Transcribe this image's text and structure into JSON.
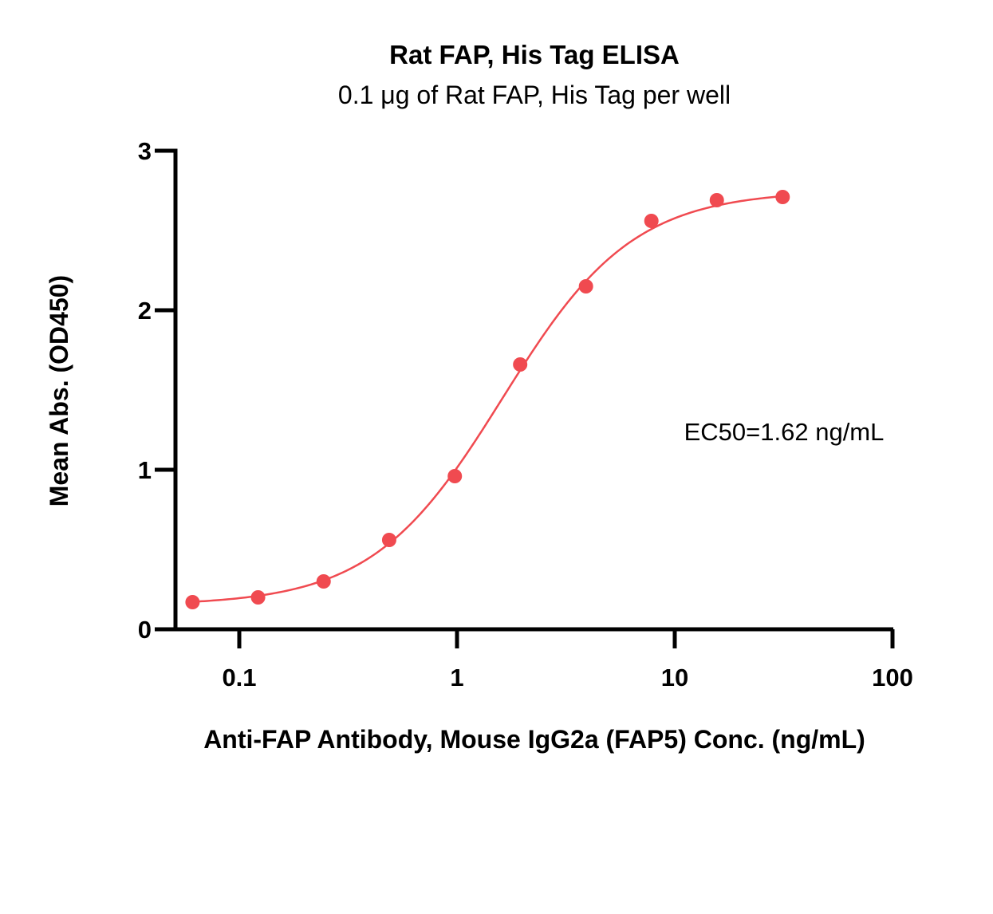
{
  "chart_data": {
    "type": "scatter",
    "title": "Rat FAP, His Tag ELISA",
    "subtitle": "0.1 μg of Rat FAP, His Tag per well",
    "xlabel": "Anti-FAP Antibody, Mouse IgG2a (FAP5) Conc. (ng/mL)",
    "ylabel": "Mean Abs. (OD450)",
    "x_scale": "log",
    "xlim": [
      0.05,
      100
    ],
    "ylim": [
      0,
      3
    ],
    "x_ticks": [
      {
        "value": 0.1,
        "label": "0.1"
      },
      {
        "value": 1,
        "label": "1"
      },
      {
        "value": 10,
        "label": "10"
      },
      {
        "value": 100,
        "label": "100"
      }
    ],
    "y_ticks": [
      {
        "value": 0,
        "label": "0"
      },
      {
        "value": 1,
        "label": "1"
      },
      {
        "value": 2,
        "label": "2"
      },
      {
        "value": 3,
        "label": "3"
      }
    ],
    "grid": false,
    "series": [
      {
        "color": "#f04a50",
        "points": [
          {
            "x": 0.061,
            "y": 0.17
          },
          {
            "x": 0.122,
            "y": 0.2
          },
          {
            "x": 0.244,
            "y": 0.3
          },
          {
            "x": 0.488,
            "y": 0.56
          },
          {
            "x": 0.977,
            "y": 0.96
          },
          {
            "x": 1.95,
            "y": 1.66
          },
          {
            "x": 3.91,
            "y": 2.15
          },
          {
            "x": 7.81,
            "y": 2.56
          },
          {
            "x": 15.6,
            "y": 2.69
          },
          {
            "x": 31.3,
            "y": 2.71
          }
        ],
        "fit": {
          "model": "4PL",
          "bottom": 0.15,
          "top": 2.75,
          "ec50": 1.62,
          "hill": 1.45
        }
      }
    ],
    "annotations": [
      {
        "text": "EC50=1.62 ng/mL"
      }
    ]
  }
}
